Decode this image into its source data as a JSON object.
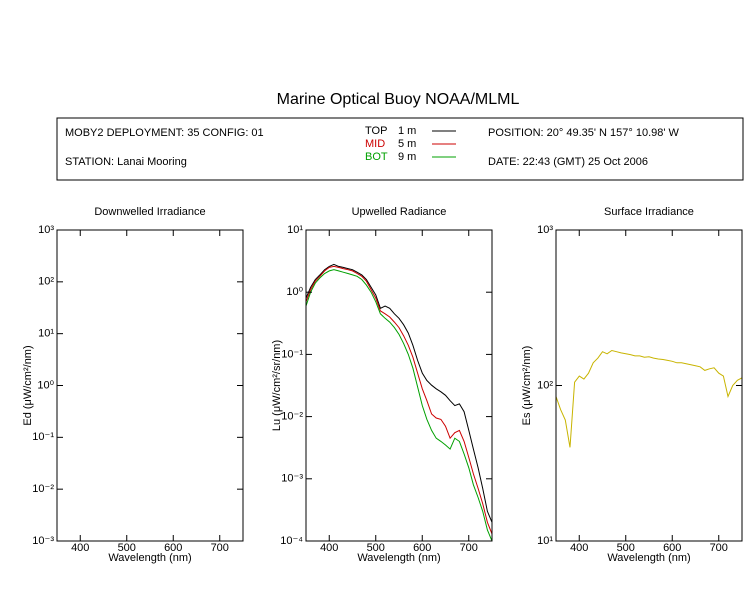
{
  "header": {
    "title": "Marine Optical Buoy NOAA/MLML",
    "deployment": "MOBY2 DEPLOYMENT: 35 CONFIG: 01",
    "station": "STATION: Lanai Mooring",
    "position": "POSITION: 20° 49.35' N   157° 10.98' W",
    "date": "DATE: 22:43 (GMT) 25 Oct 2006"
  },
  "chart_data": [
    {
      "type": "line",
      "title": "Downwelled Irradiance",
      "xlabel": "Wavelength (nm)",
      "ylabel": "Ed  (μW/cm²/nm)",
      "xlim": [
        350,
        750
      ],
      "xticks": [
        400,
        500,
        600,
        700
      ],
      "ylog": true,
      "ylim": [
        0.001,
        1000
      ],
      "yticks": [
        {
          "value": 0.001,
          "label": "10⁻³"
        },
        {
          "value": 0.01,
          "label": "10⁻²"
        },
        {
          "value": 0.1,
          "label": "10⁻¹"
        },
        {
          "value": 1,
          "label": "10⁰"
        },
        {
          "value": 10,
          "label": "10¹"
        },
        {
          "value": 100,
          "label": "10²"
        },
        {
          "value": 1000,
          "label": "10³"
        }
      ],
      "x": [],
      "series": []
    },
    {
      "type": "line",
      "title": "Upwelled Radiance",
      "xlabel": "Wavelength (nm)",
      "ylabel": "Lu  (μW/cm²/sr/nm)",
      "xlim": [
        350,
        750
      ],
      "xticks": [
        400,
        500,
        600,
        700
      ],
      "ylog": true,
      "ylim": [
        0.0001,
        10
      ],
      "yticks": [
        {
          "value": 0.0001,
          "label": "10⁻⁴"
        },
        {
          "value": 0.001,
          "label": "10⁻³"
        },
        {
          "value": 0.01,
          "label": "10⁻²"
        },
        {
          "value": 0.1,
          "label": "10⁻¹"
        },
        {
          "value": 1,
          "label": "10⁰"
        },
        {
          "value": 10,
          "label": "10¹"
        }
      ],
      "x": [
        350,
        360,
        370,
        380,
        390,
        400,
        410,
        420,
        430,
        440,
        450,
        460,
        470,
        480,
        490,
        500,
        510,
        520,
        530,
        540,
        550,
        560,
        570,
        580,
        590,
        600,
        610,
        620,
        630,
        640,
        650,
        660,
        670,
        680,
        690,
        700,
        710,
        720,
        730,
        740,
        750
      ],
      "series": [
        {
          "name": "TOP",
          "depth": "1 m",
          "color": "#000000",
          "values": [
            0.8,
            1.2,
            1.6,
            1.9,
            2.3,
            2.6,
            2.8,
            2.6,
            2.5,
            2.4,
            2.3,
            2.1,
            1.9,
            1.6,
            1.2,
            0.9,
            0.55,
            0.6,
            0.55,
            0.45,
            0.38,
            0.3,
            0.22,
            0.14,
            0.08,
            0.05,
            0.038,
            0.032,
            0.028,
            0.025,
            0.022,
            0.018,
            0.015,
            0.016,
            0.012,
            0.006,
            0.003,
            0.0015,
            0.0007,
            0.0003,
            0.0002
          ]
        },
        {
          "name": "MID",
          "depth": "5 m",
          "color": "#cc0000",
          "values": [
            0.7,
            1.1,
            1.5,
            1.8,
            2.2,
            2.5,
            2.6,
            2.5,
            2.4,
            2.3,
            2.2,
            2.0,
            1.8,
            1.5,
            1.1,
            0.8,
            0.5,
            0.45,
            0.4,
            0.33,
            0.27,
            0.2,
            0.14,
            0.09,
            0.05,
            0.028,
            0.018,
            0.011,
            0.0095,
            0.009,
            0.007,
            0.0045,
            0.0055,
            0.006,
            0.004,
            0.0022,
            0.0012,
            0.0007,
            0.0004,
            0.0002,
            0.00013
          ]
        },
        {
          "name": "BOT",
          "depth": "9 m",
          "color": "#00a000",
          "values": [
            0.6,
            1.0,
            1.4,
            1.7,
            2.0,
            2.2,
            2.3,
            2.2,
            2.1,
            2.0,
            1.9,
            1.8,
            1.6,
            1.3,
            1.0,
            0.7,
            0.45,
            0.38,
            0.33,
            0.27,
            0.21,
            0.15,
            0.1,
            0.06,
            0.03,
            0.015,
            0.009,
            0.006,
            0.0045,
            0.004,
            0.0035,
            0.003,
            0.0045,
            0.004,
            0.0025,
            0.0015,
            0.0008,
            0.0005,
            0.0003,
            0.00015,
            0.0001
          ]
        }
      ]
    },
    {
      "type": "line",
      "title": "Surface Irradiance",
      "xlabel": "Wavelength (nm)",
      "ylabel": "Es  (μW/cm²/nm)",
      "xlim": [
        350,
        750
      ],
      "xticks": [
        400,
        500,
        600,
        700
      ],
      "ylog": true,
      "ylim": [
        10,
        1000
      ],
      "yticks": [
        {
          "value": 10,
          "label": "10¹"
        },
        {
          "value": 100,
          "label": "10²"
        },
        {
          "value": 1000,
          "label": "10³"
        }
      ],
      "x": [
        350,
        360,
        370,
        380,
        390,
        400,
        410,
        420,
        430,
        440,
        450,
        460,
        470,
        480,
        490,
        500,
        510,
        520,
        530,
        540,
        550,
        560,
        570,
        580,
        590,
        600,
        610,
        620,
        630,
        640,
        650,
        660,
        670,
        680,
        690,
        700,
        710,
        720,
        730,
        740,
        750
      ],
      "series": [
        {
          "color": "#c8b400",
          "values": [
            85,
            70,
            60,
            40,
            105,
            115,
            110,
            120,
            140,
            150,
            165,
            160,
            168,
            165,
            162,
            160,
            158,
            155,
            155,
            152,
            153,
            150,
            148,
            147,
            145,
            143,
            140,
            140,
            138,
            136,
            134,
            132,
            125,
            128,
            130,
            120,
            115,
            85,
            100,
            108,
            112
          ]
        }
      ]
    }
  ]
}
